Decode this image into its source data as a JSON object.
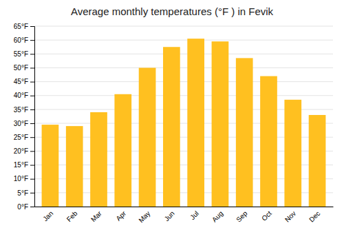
{
  "chart_data": {
    "type": "bar",
    "title": "Average monthly temperatures (°F ) in Fevik",
    "categories": [
      "Jan",
      "Feb",
      "Mar",
      "Apr",
      "May",
      "Jun",
      "Jul",
      "Aug",
      "Sep",
      "Oct",
      "Nov",
      "Dec"
    ],
    "values": [
      29.5,
      29.0,
      34.0,
      40.5,
      50.0,
      57.5,
      60.5,
      59.5,
      53.5,
      47.0,
      38.5,
      33.0
    ],
    "color": "#FFC020",
    "ylim": [
      0,
      65
    ],
    "yticks": [
      {
        "value": 0,
        "label": "0°F"
      },
      {
        "value": 5,
        "label": "5°F"
      },
      {
        "value": 10,
        "label": "10°F"
      },
      {
        "value": 15,
        "label": "15°F"
      },
      {
        "value": 20,
        "label": "20°F"
      },
      {
        "value": 25,
        "label": "25°F"
      },
      {
        "value": 30,
        "label": "30°F"
      },
      {
        "value": 35,
        "label": "35°F"
      },
      {
        "value": 40,
        "label": "40°F"
      },
      {
        "value": 45,
        "label": "45°F"
      },
      {
        "value": 50,
        "label": "50°F"
      },
      {
        "value": 55,
        "label": "55°F"
      },
      {
        "value": 60,
        "label": "60°F"
      },
      {
        "value": 65,
        "label": "65°F"
      }
    ],
    "grid": true
  }
}
